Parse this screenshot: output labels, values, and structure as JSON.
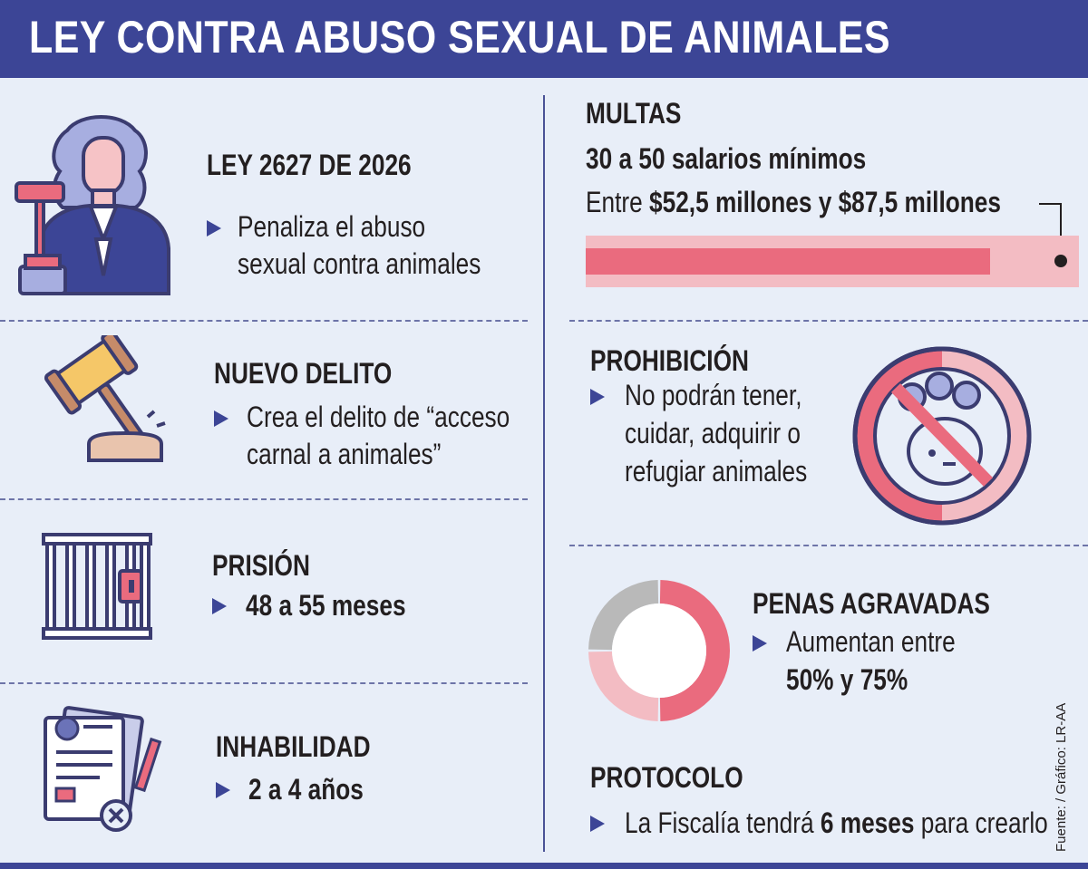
{
  "header": {
    "title": "LEY CONTRA ABUSO SEXUAL DE ANIMALES"
  },
  "colors": {
    "navy": "#3c4596",
    "pink": "#ea6b7e",
    "light_pink": "#f3bcc3",
    "gray": "#b9b9b9",
    "background": "#e8eef8"
  },
  "left": {
    "ley": {
      "icon": "judge-icon",
      "title": "LEY 2627 DE 2026",
      "line1": "Penaliza el abuso",
      "line2": "sexual contra animales"
    },
    "delito": {
      "icon": "gavel-icon",
      "title": "NUEVO DELITO",
      "line1": "Crea el delito de “acceso",
      "line2": "carnal a animales”"
    },
    "prision": {
      "icon": "jail-bars-icon",
      "title": "PRISIÓN",
      "value": "48 a 55 meses"
    },
    "inhabilidad": {
      "icon": "document-cancel-icon",
      "title": "INHABILIDAD",
      "value": "2 a 4 años"
    }
  },
  "right": {
    "multas": {
      "title": "MULTAS",
      "subtitle": "30 a 50 salarios mínimos",
      "prefix": "Entre ",
      "range": "$52,5 millones y $87,5 millones",
      "bar_fill_fraction": 0.82
    },
    "prohibicion": {
      "icon": "no-pet-icon",
      "title": "PROHIBICIÓN",
      "line1": "No podrán tener,",
      "line2": "cuidar, adquirir o",
      "line3": "refugiar animales"
    },
    "penas": {
      "title": "PENAS AGRAVADAS",
      "line1": "Aumentan entre",
      "line2": "50% y 75%",
      "donut_segments": [
        {
          "share": 50,
          "color": "#ea6b7e"
        },
        {
          "share": 25,
          "color": "#f3bcc3"
        },
        {
          "share": 25,
          "color": "#b9b9b9"
        }
      ]
    },
    "protocolo": {
      "title": "PROTOCOLO",
      "pre": "La Fiscalía tendrá ",
      "bold": "6 meses",
      "post": " para crearlo"
    }
  },
  "credit": "Fuente: / Gráfico: LR-AA"
}
